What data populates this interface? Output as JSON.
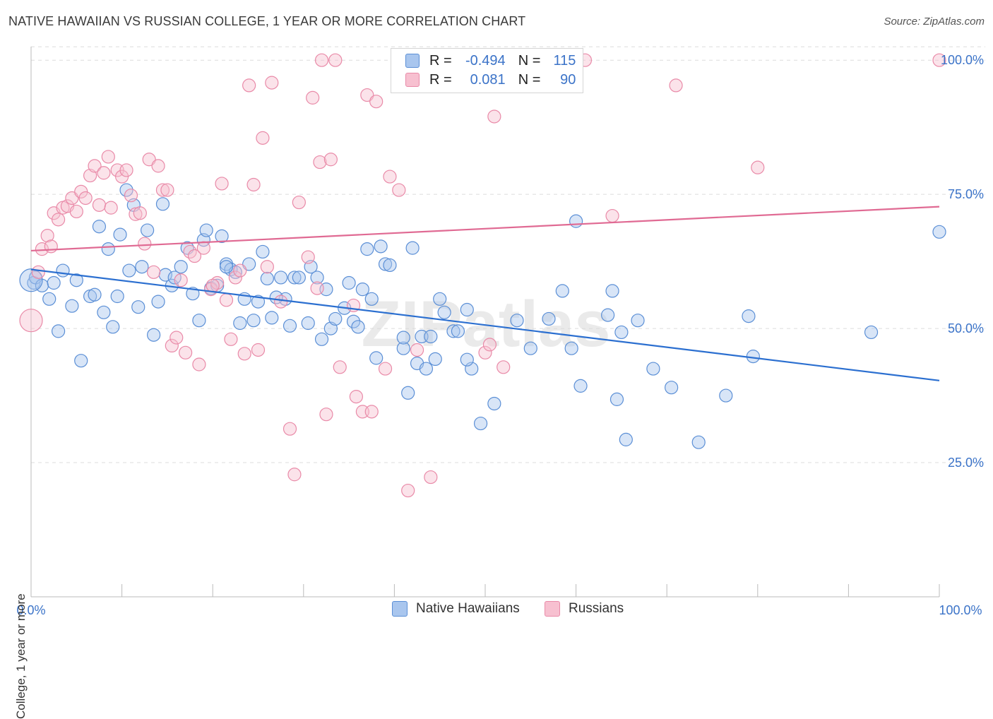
{
  "header": {
    "title": "NATIVE HAWAIIAN VS RUSSIAN COLLEGE, 1 YEAR OR MORE CORRELATION CHART",
    "source": "Source: ZipAtlas.com"
  },
  "legend": {
    "rows": [
      {
        "r_label": "R =",
        "r_value": "-0.494",
        "n_label": "N =",
        "n_value": "115"
      },
      {
        "r_label": "R =",
        "r_value": "0.081",
        "n_label": "N =",
        "n_value": "90"
      }
    ]
  },
  "bottom_legend": [
    "Native Hawaiians",
    "Russians"
  ],
  "watermark": "ZIPatlas",
  "colors": {
    "blue_fill": "#a9c6ee",
    "blue_stroke": "#5b8fd6",
    "blue_line": "#2b6fd0",
    "pink_fill": "#f7c0d0",
    "pink_stroke": "#e98aa8",
    "pink_line": "#e06a93",
    "tick_label": "#3b73c8",
    "grid": "#dcdcdc"
  },
  "chart_data": {
    "type": "scatter",
    "title": "NATIVE HAWAIIAN VS RUSSIAN COLLEGE, 1 YEAR OR MORE CORRELATION CHART",
    "xlabel": "",
    "ylabel": "College, 1 year or more",
    "xlim": [
      0,
      100
    ],
    "ylim": [
      0,
      102
    ],
    "x_tick_labels": [
      "0.0%",
      "100.0%"
    ],
    "y_tick_labels": [
      "25.0%",
      "50.0%",
      "75.0%",
      "100.0%"
    ],
    "y_ticks": [
      25,
      50,
      75,
      100
    ],
    "grid": true,
    "legend_position": "top-center",
    "series": [
      {
        "name": "Native Hawaiians",
        "color": "#5b8fd6",
        "trend": {
          "x": [
            0,
            100
          ],
          "y": [
            61.0,
            40.3
          ]
        },
        "points": [
          [
            0.3,
            58.5
          ],
          [
            0.5,
            59.5
          ],
          [
            1.2,
            58.0
          ],
          [
            2.0,
            55.5
          ],
          [
            2.5,
            58.5
          ],
          [
            3.0,
            49.5
          ],
          [
            3.5,
            60.8
          ],
          [
            4.5,
            54.2
          ],
          [
            5.0,
            59.0
          ],
          [
            5.5,
            44.0
          ],
          [
            6.5,
            56.0
          ],
          [
            7.0,
            56.3
          ],
          [
            7.5,
            69.0
          ],
          [
            8.0,
            53.0
          ],
          [
            8.5,
            64.8
          ],
          [
            9.0,
            50.3
          ],
          [
            9.5,
            56.0
          ],
          [
            9.8,
            67.5
          ],
          [
            10.5,
            75.8
          ],
          [
            10.8,
            60.8
          ],
          [
            11.3,
            73.0
          ],
          [
            11.8,
            54.0
          ],
          [
            12.2,
            61.5
          ],
          [
            12.8,
            68.3
          ],
          [
            13.5,
            48.8
          ],
          [
            14.0,
            55.0
          ],
          [
            14.5,
            73.2
          ],
          [
            14.8,
            60.0
          ],
          [
            15.5,
            58.0
          ],
          [
            15.8,
            59.5
          ],
          [
            16.5,
            61.5
          ],
          [
            17.2,
            65.0
          ],
          [
            17.8,
            56.5
          ],
          [
            18.5,
            51.5
          ],
          [
            19.0,
            66.5
          ],
          [
            19.3,
            68.3
          ],
          [
            19.8,
            57.5
          ],
          [
            20.5,
            58.0
          ],
          [
            21.0,
            67.2
          ],
          [
            21.5,
            62.0
          ],
          [
            22.0,
            61.0
          ],
          [
            22.5,
            60.5
          ],
          [
            23.0,
            51.0
          ],
          [
            23.5,
            55.5
          ],
          [
            24.0,
            62.0
          ],
          [
            24.5,
            51.5
          ],
          [
            25.0,
            55.0
          ],
          [
            25.5,
            64.3
          ],
          [
            26.0,
            59.3
          ],
          [
            26.5,
            52.0
          ],
          [
            27.5,
            59.5
          ],
          [
            28.0,
            55.5
          ],
          [
            28.5,
            50.5
          ],
          [
            29.0,
            59.5
          ],
          [
            29.5,
            59.5
          ],
          [
            30.5,
            51.0
          ],
          [
            30.8,
            61.5
          ],
          [
            31.5,
            59.5
          ],
          [
            32.0,
            48.0
          ],
          [
            32.5,
            57.3
          ],
          [
            33.0,
            50.0
          ],
          [
            33.5,
            51.8
          ],
          [
            34.5,
            53.8
          ],
          [
            35.0,
            58.5
          ],
          [
            35.5,
            51.3
          ],
          [
            36.0,
            50.3
          ],
          [
            36.5,
            57.3
          ],
          [
            37.0,
            64.8
          ],
          [
            37.5,
            55.5
          ],
          [
            38.0,
            44.5
          ],
          [
            38.5,
            65.3
          ],
          [
            39.0,
            62.0
          ],
          [
            39.5,
            61.8
          ],
          [
            41.0,
            46.3
          ],
          [
            41.5,
            38.0
          ],
          [
            42.0,
            65.0
          ],
          [
            42.5,
            43.5
          ],
          [
            43.0,
            48.5
          ],
          [
            43.5,
            42.5
          ],
          [
            44.0,
            48.5
          ],
          [
            44.5,
            44.3
          ],
          [
            45.0,
            55.5
          ],
          [
            45.5,
            53.0
          ],
          [
            46.5,
            49.5
          ],
          [
            47.0,
            49.5
          ],
          [
            48.0,
            53.5
          ],
          [
            48.5,
            42.5
          ],
          [
            49.5,
            32.3
          ],
          [
            51.0,
            36.0
          ],
          [
            53.5,
            51.5
          ],
          [
            55.0,
            46.3
          ],
          [
            57.0,
            51.8
          ],
          [
            58.5,
            57.0
          ],
          [
            59.5,
            46.3
          ],
          [
            60.0,
            70.0
          ],
          [
            60.5,
            39.3
          ],
          [
            63.5,
            52.5
          ],
          [
            64.0,
            57.0
          ],
          [
            64.5,
            36.8
          ],
          [
            65.0,
            49.3
          ],
          [
            65.5,
            29.3
          ],
          [
            66.8,
            51.5
          ],
          [
            68.5,
            42.5
          ],
          [
            70.5,
            39.0
          ],
          [
            73.5,
            28.8
          ],
          [
            76.5,
            37.5
          ],
          [
            79.0,
            52.3
          ],
          [
            79.5,
            44.8
          ],
          [
            92.5,
            49.3
          ],
          [
            100.0,
            68.0
          ],
          [
            0.0,
            59.0
          ],
          [
            21.5,
            61.5
          ],
          [
            27.0,
            55.8
          ],
          [
            41.0,
            48.3
          ],
          [
            48.0,
            44.2
          ]
        ]
      },
      {
        "name": "Russians",
        "color": "#e98aa8",
        "trend": {
          "x": [
            0,
            100
          ],
          "y": [
            64.5,
            72.7
          ]
        },
        "points": [
          [
            0.0,
            51.5
          ],
          [
            0.8,
            60.5
          ],
          [
            1.2,
            64.8
          ],
          [
            1.8,
            67.3
          ],
          [
            2.2,
            65.3
          ],
          [
            2.5,
            71.5
          ],
          [
            3.0,
            70.3
          ],
          [
            3.5,
            72.5
          ],
          [
            4.0,
            72.8
          ],
          [
            4.5,
            74.3
          ],
          [
            5.0,
            71.8
          ],
          [
            5.5,
            75.5
          ],
          [
            6.0,
            74.3
          ],
          [
            6.5,
            78.5
          ],
          [
            7.0,
            80.3
          ],
          [
            7.5,
            73.0
          ],
          [
            8.0,
            79.0
          ],
          [
            8.5,
            82.0
          ],
          [
            8.8,
            72.5
          ],
          [
            9.5,
            79.5
          ],
          [
            10.0,
            78.3
          ],
          [
            10.5,
            79.5
          ],
          [
            11.0,
            74.8
          ],
          [
            11.5,
            71.3
          ],
          [
            12.0,
            71.5
          ],
          [
            12.5,
            65.8
          ],
          [
            13.0,
            81.5
          ],
          [
            13.5,
            60.5
          ],
          [
            14.0,
            80.3
          ],
          [
            14.5,
            75.8
          ],
          [
            15.0,
            75.8
          ],
          [
            15.5,
            46.8
          ],
          [
            16.0,
            48.3
          ],
          [
            16.5,
            59.0
          ],
          [
            17.0,
            45.5
          ],
          [
            17.5,
            64.3
          ],
          [
            18.0,
            63.5
          ],
          [
            18.5,
            43.3
          ],
          [
            19.0,
            65.0
          ],
          [
            19.8,
            57.3
          ],
          [
            20.5,
            58.5
          ],
          [
            21.0,
            77.0
          ],
          [
            21.5,
            55.3
          ],
          [
            22.0,
            48.0
          ],
          [
            22.5,
            59.5
          ],
          [
            23.0,
            60.8
          ],
          [
            23.5,
            45.3
          ],
          [
            24.0,
            95.3
          ],
          [
            24.5,
            76.8
          ],
          [
            25.0,
            46.0
          ],
          [
            25.5,
            85.5
          ],
          [
            26.0,
            61.5
          ],
          [
            26.5,
            95.8
          ],
          [
            27.5,
            55.0
          ],
          [
            28.5,
            31.3
          ],
          [
            29.0,
            22.8
          ],
          [
            29.5,
            73.5
          ],
          [
            30.5,
            63.3
          ],
          [
            31.0,
            93.0
          ],
          [
            31.5,
            57.5
          ],
          [
            31.8,
            81.0
          ],
          [
            32.0,
            100.0
          ],
          [
            32.5,
            34.0
          ],
          [
            33.0,
            81.5
          ],
          [
            33.5,
            100.0
          ],
          [
            34.0,
            42.8
          ],
          [
            35.5,
            54.3
          ],
          [
            35.8,
            37.3
          ],
          [
            36.5,
            34.5
          ],
          [
            37.0,
            93.5
          ],
          [
            37.5,
            34.5
          ],
          [
            38.0,
            92.3
          ],
          [
            39.0,
            42.5
          ],
          [
            39.5,
            78.3
          ],
          [
            40.5,
            75.8
          ],
          [
            41.5,
            19.8
          ],
          [
            42.5,
            46.0
          ],
          [
            44.0,
            22.3
          ],
          [
            47.5,
            100.0
          ],
          [
            50.0,
            45.5
          ],
          [
            50.5,
            47.0
          ],
          [
            51.0,
            89.5
          ],
          [
            52.0,
            42.8
          ],
          [
            59.0,
            100.0
          ],
          [
            61.0,
            100.0
          ],
          [
            64.0,
            71.0
          ],
          [
            71.0,
            95.3
          ],
          [
            80.0,
            80.0
          ],
          [
            100.0,
            100.0
          ],
          [
            20.0,
            58.0
          ]
        ]
      }
    ]
  }
}
